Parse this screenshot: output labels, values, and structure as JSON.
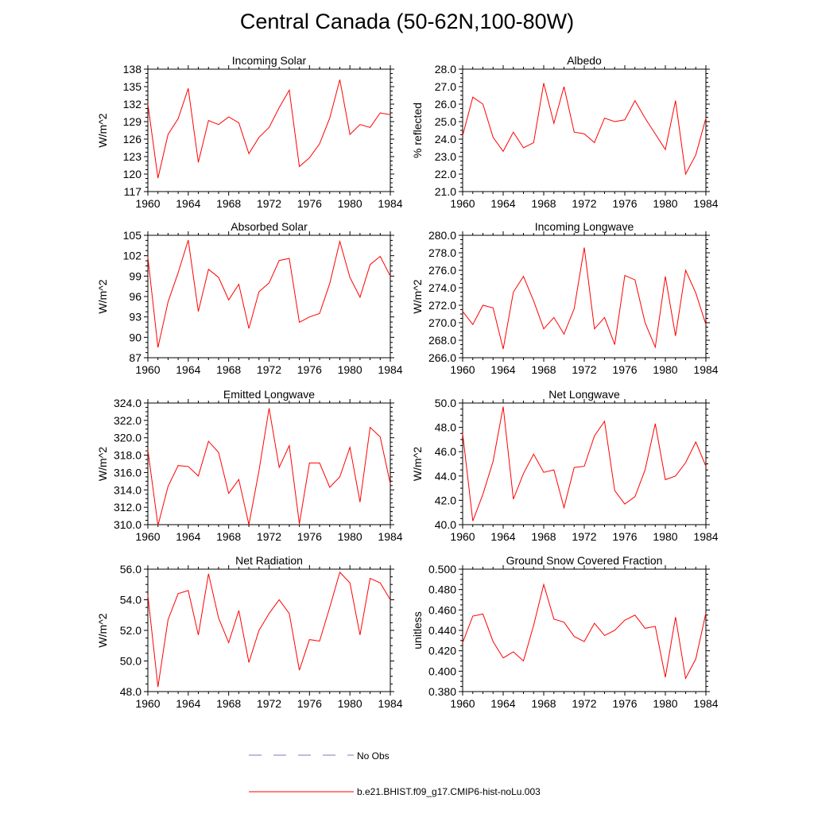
{
  "figure": {
    "title": "Central Canada (50-62N,100-80W)"
  },
  "legend": {
    "entries": [
      {
        "label": "No Obs",
        "color": "#7777cc",
        "style": "dashed"
      },
      {
        "label": "b.e21.BHIST.f09_g17.CMIP6-hist-noLu.003",
        "color": "#ff0000",
        "style": "solid"
      }
    ]
  },
  "chart_data": [
    {
      "type": "line",
      "title": "Incoming Solar",
      "ylabel": "W/m^2",
      "xlim": [
        1960,
        1984
      ],
      "ylim": [
        117,
        138
      ],
      "xticks": [
        "1960",
        "1964",
        "1968",
        "1972",
        "1976",
        "1980",
        "1984"
      ],
      "yticks": [
        "117",
        "120",
        "123",
        "126",
        "129",
        "132",
        "135",
        "138"
      ],
      "x": [
        1960,
        1961,
        1962,
        1963,
        1964,
        1965,
        1966,
        1967,
        1968,
        1969,
        1970,
        1971,
        1972,
        1973,
        1974,
        1975,
        1976,
        1977,
        1978,
        1979,
        1980,
        1981,
        1982,
        1983,
        1984
      ],
      "series": [
        {
          "name": "b.e21.BHIST.f09_g17.CMIP6-hist-noLu.003",
          "color": "#ff0000",
          "values": [
            132.0,
            119.3,
            126.8,
            129.5,
            134.7,
            122.0,
            129.2,
            128.5,
            129.8,
            128.8,
            123.5,
            126.3,
            128.0,
            131.4,
            134.4,
            121.3,
            122.8,
            125.2,
            129.6,
            136.2,
            126.8,
            128.5,
            128.0,
            130.5,
            130.2
          ]
        }
      ]
    },
    {
      "type": "line",
      "title": "Albedo",
      "ylabel": "% reflected",
      "xlim": [
        1960,
        1984
      ],
      "ylim": [
        21.0,
        28.0
      ],
      "xticks": [
        "1960",
        "1964",
        "1968",
        "1972",
        "1976",
        "1980",
        "1984"
      ],
      "yticks": [
        "21.0",
        "22.0",
        "23.0",
        "24.0",
        "25.0",
        "26.0",
        "27.0",
        "28.0"
      ],
      "x": [
        1960,
        1961,
        1962,
        1963,
        1964,
        1965,
        1966,
        1967,
        1968,
        1969,
        1970,
        1971,
        1972,
        1973,
        1974,
        1975,
        1976,
        1977,
        1978,
        1979,
        1980,
        1981,
        1982,
        1983,
        1984
      ],
      "series": [
        {
          "name": "b.e21.BHIST.f09_g17.CMIP6-hist-noLu.003",
          "color": "#ff0000",
          "values": [
            24.2,
            26.4,
            26.0,
            24.1,
            23.3,
            24.4,
            23.5,
            23.8,
            27.2,
            24.9,
            27.0,
            24.4,
            24.3,
            23.8,
            25.2,
            25.0,
            25.1,
            26.2,
            25.2,
            24.3,
            23.4,
            26.2,
            22.0,
            23.1,
            25.2
          ]
        }
      ]
    },
    {
      "type": "line",
      "title": "Absorbed Solar",
      "ylabel": "W/m^2",
      "xlim": [
        1960,
        1984
      ],
      "ylim": [
        87,
        105
      ],
      "xticks": [
        "1960",
        "1964",
        "1968",
        "1972",
        "1976",
        "1980",
        "1984"
      ],
      "yticks": [
        "87",
        "90",
        "93",
        "96",
        "99",
        "102",
        "105"
      ],
      "x": [
        1960,
        1961,
        1962,
        1963,
        1964,
        1965,
        1966,
        1967,
        1968,
        1969,
        1970,
        1971,
        1972,
        1973,
        1974,
        1975,
        1976,
        1977,
        1978,
        1979,
        1980,
        1981,
        1982,
        1983,
        1984
      ],
      "series": [
        {
          "name": "b.e21.BHIST.f09_g17.CMIP6-hist-noLu.003",
          "color": "#ff0000",
          "values": [
            101.8,
            88.5,
            95.2,
            99.5,
            104.3,
            93.8,
            100.0,
            98.8,
            95.5,
            97.8,
            91.3,
            96.7,
            98.0,
            101.3,
            101.6,
            92.2,
            93.0,
            93.5,
            97.9,
            104.1,
            98.8,
            95.9,
            100.7,
            101.9,
            99.0
          ]
        }
      ]
    },
    {
      "type": "line",
      "title": "Incoming Longwave",
      "ylabel": "W/m^2",
      "xlim": [
        1960,
        1984
      ],
      "ylim": [
        266.0,
        280.0
      ],
      "xticks": [
        "1960",
        "1964",
        "1968",
        "1972",
        "1976",
        "1980",
        "1984"
      ],
      "yticks": [
        "266.0",
        "268.0",
        "270.0",
        "272.0",
        "274.0",
        "276.0",
        "278.0",
        "280.0"
      ],
      "x": [
        1960,
        1961,
        1962,
        1963,
        1964,
        1965,
        1966,
        1967,
        1968,
        1969,
        1970,
        1971,
        1972,
        1973,
        1974,
        1975,
        1976,
        1977,
        1978,
        1979,
        1980,
        1981,
        1982,
        1983,
        1984
      ],
      "series": [
        {
          "name": "b.e21.BHIST.f09_g17.CMIP6-hist-noLu.003",
          "color": "#ff0000",
          "values": [
            271.3,
            269.8,
            272.0,
            271.7,
            267.0,
            273.5,
            275.3,
            272.5,
            269.3,
            270.6,
            268.7,
            271.6,
            278.6,
            269.3,
            270.6,
            267.5,
            275.4,
            274.9,
            270.0,
            267.2,
            275.3,
            268.5,
            276.0,
            273.4,
            269.8
          ]
        }
      ]
    },
    {
      "type": "line",
      "title": "Emitted Longwave",
      "ylabel": "W/m^2",
      "xlim": [
        1960,
        1984
      ],
      "ylim": [
        310.0,
        324.0
      ],
      "xticks": [
        "1960",
        "1964",
        "1968",
        "1972",
        "1976",
        "1980",
        "1984"
      ],
      "yticks": [
        "310.0",
        "312.0",
        "314.0",
        "316.0",
        "318.0",
        "320.0",
        "322.0",
        "324.0"
      ],
      "x": [
        1960,
        1961,
        1962,
        1963,
        1964,
        1965,
        1966,
        1967,
        1968,
        1969,
        1970,
        1971,
        1972,
        1973,
        1974,
        1975,
        1976,
        1977,
        1978,
        1979,
        1980,
        1981,
        1982,
        1983,
        1984
      ],
      "series": [
        {
          "name": "b.e21.BHIST.f09_g17.CMIP6-hist-noLu.003",
          "color": "#ff0000",
          "values": [
            318.6,
            309.9,
            314.4,
            316.8,
            316.7,
            315.6,
            319.6,
            318.3,
            313.6,
            315.2,
            310.0,
            316.2,
            323.4,
            316.6,
            319.1,
            310.1,
            317.1,
            317.1,
            314.3,
            315.5,
            318.9,
            312.6,
            321.2,
            320.1,
            314.7
          ]
        }
      ]
    },
    {
      "type": "line",
      "title": "Net Longwave",
      "ylabel": "W/m^2",
      "xlim": [
        1960,
        1984
      ],
      "ylim": [
        40.0,
        50.0
      ],
      "xticks": [
        "1960",
        "1964",
        "1968",
        "1972",
        "1976",
        "1980",
        "1984"
      ],
      "yticks": [
        "40.0",
        "42.0",
        "44.0",
        "46.0",
        "48.0",
        "50.0"
      ],
      "x": [
        1960,
        1961,
        1962,
        1963,
        1964,
        1965,
        1966,
        1967,
        1968,
        1969,
        1970,
        1971,
        1972,
        1973,
        1974,
        1975,
        1976,
        1977,
        1978,
        1979,
        1980,
        1981,
        1982,
        1983,
        1984
      ],
      "series": [
        {
          "name": "b.e21.BHIST.f09_g17.CMIP6-hist-noLu.003",
          "color": "#ff0000",
          "values": [
            47.5,
            40.3,
            42.5,
            45.2,
            49.7,
            42.1,
            44.2,
            45.8,
            44.3,
            44.5,
            41.4,
            44.7,
            44.8,
            47.3,
            48.5,
            42.8,
            41.7,
            42.3,
            44.5,
            48.3,
            43.7,
            44.0,
            45.1,
            46.8,
            44.8
          ]
        }
      ]
    },
    {
      "type": "line",
      "title": "Net Radiation",
      "ylabel": "W/m^2",
      "xlim": [
        1960,
        1984
      ],
      "ylim": [
        48.0,
        56.0
      ],
      "xticks": [
        "1960",
        "1964",
        "1968",
        "1972",
        "1976",
        "1980",
        "1984"
      ],
      "yticks": [
        "48.0",
        "50.0",
        "52.0",
        "54.0",
        "56.0"
      ],
      "x": [
        1960,
        1961,
        1962,
        1963,
        1964,
        1965,
        1966,
        1967,
        1968,
        1969,
        1970,
        1971,
        1972,
        1973,
        1974,
        1975,
        1976,
        1977,
        1978,
        1979,
        1980,
        1981,
        1982,
        1983,
        1984
      ],
      "series": [
        {
          "name": "b.e21.BHIST.f09_g17.CMIP6-hist-noLu.003",
          "color": "#ff0000",
          "values": [
            54.3,
            48.3,
            52.7,
            54.4,
            54.6,
            51.7,
            55.7,
            52.8,
            51.2,
            53.3,
            49.9,
            52.0,
            53.1,
            54.0,
            53.1,
            49.4,
            51.4,
            51.3,
            53.5,
            55.8,
            55.1,
            51.7,
            55.4,
            55.1,
            54.0
          ]
        }
      ]
    },
    {
      "type": "line",
      "title": "Ground Snow Covered Fraction",
      "ylabel": "unitless",
      "xlim": [
        1960,
        1984
      ],
      "ylim": [
        0.38,
        0.5
      ],
      "xticks": [
        "1960",
        "1964",
        "1968",
        "1972",
        "1976",
        "1980",
        "1984"
      ],
      "yticks": [
        "0.380",
        "0.400",
        "0.420",
        "0.440",
        "0.460",
        "0.480",
        "0.500"
      ],
      "x": [
        1960,
        1961,
        1962,
        1963,
        1964,
        1965,
        1966,
        1967,
        1968,
        1969,
        1970,
        1971,
        1972,
        1973,
        1974,
        1975,
        1976,
        1977,
        1978,
        1979,
        1980,
        1981,
        1982,
        1983,
        1984
      ],
      "series": [
        {
          "name": "b.e21.BHIST.f09_g17.CMIP6-hist-noLu.003",
          "color": "#ff0000",
          "values": [
            0.428,
            0.454,
            0.456,
            0.429,
            0.413,
            0.419,
            0.41,
            0.445,
            0.485,
            0.451,
            0.448,
            0.434,
            0.429,
            0.447,
            0.435,
            0.44,
            0.45,
            0.455,
            0.442,
            0.444,
            0.394,
            0.453,
            0.393,
            0.412,
            0.457
          ]
        }
      ]
    }
  ]
}
